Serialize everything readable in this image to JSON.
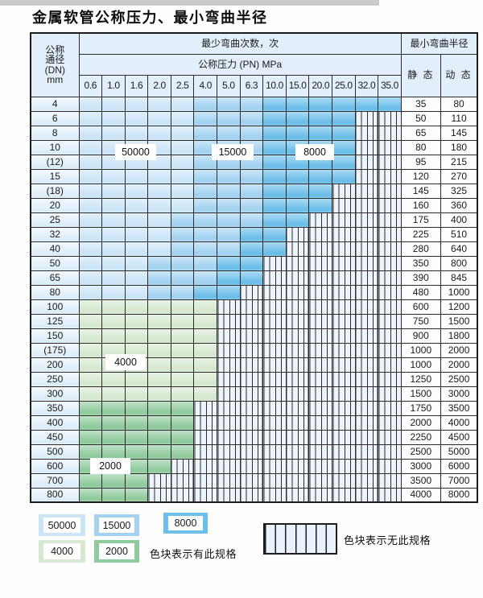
{
  "title": "金属软管公称压力、最小弯曲半径",
  "colors": {
    "blue_50000": "#cbe5f7",
    "blue_15000": "#a3d3f1",
    "blue_8000": "#6cbfe9",
    "green_4000": "#d7e8d0",
    "green_2000": "#90cb9e",
    "hatch_fill": "#edf4fb",
    "grid_line": "#2b2b2b",
    "header_bg": "#e2effa"
  },
  "table": {
    "header": {
      "dn_lines": [
        "公称",
        "通径",
        "(DN)",
        "mm"
      ],
      "bend_cycles": "最少弯曲次数，次",
      "pressure": "公称压力 (PN) MPa",
      "pressures": [
        "0.6",
        "1.0",
        "1.6",
        "2.0",
        "2.5",
        "4.0",
        "5.0",
        "6.3",
        "10.0",
        "15.0",
        "20.0",
        "25.0",
        "32.0",
        "35.0"
      ],
      "min_radius": "最小弯曲半径",
      "static": "静 态",
      "dynamic": "动 态"
    },
    "zone_codes": {
      "a": "50000",
      "b": "15000",
      "c": "8000",
      "d": "4000",
      "e": "2000",
      "h": "no-spec-hatched"
    },
    "rows": [
      {
        "dn": "4",
        "cells": "aaaaabbbcccccc",
        "static": "35",
        "dynamic": "80"
      },
      {
        "dn": "6",
        "cells": "aaaaabbbcccchh",
        "static": "50",
        "dynamic": "110"
      },
      {
        "dn": "8",
        "cells": "aaaaabbbcccchh",
        "static": "65",
        "dynamic": "145"
      },
      {
        "dn": "10",
        "cells": "aaaaabbbcccchh",
        "static": "80",
        "dynamic": "180"
      },
      {
        "dn": "(12)",
        "cells": "aaaaabbbcccchh",
        "static": "95",
        "dynamic": "215"
      },
      {
        "dn": "15",
        "cells": "aaaaabbbcccchh",
        "static": "120",
        "dynamic": "270"
      },
      {
        "dn": "(18)",
        "cells": "aaaaabbbccchhh",
        "static": "145",
        "dynamic": "325"
      },
      {
        "dn": "20",
        "cells": "aaaaabbbccchhh",
        "static": "160",
        "dynamic": "360"
      },
      {
        "dn": "25",
        "cells": "aaaabbbbcchhhh",
        "static": "175",
        "dynamic": "400"
      },
      {
        "dn": "32",
        "cells": "aaaabbbcchhhhh",
        "static": "225",
        "dynamic": "510"
      },
      {
        "dn": "40",
        "cells": "aaaabbbcchhhhh",
        "static": "280",
        "dynamic": "640"
      },
      {
        "dn": "50",
        "cells": "aaabbbcchhhhhh",
        "static": "350",
        "dynamic": "800"
      },
      {
        "dn": "65",
        "cells": "aaabbbcchhhhhh",
        "static": "390",
        "dynamic": "845"
      },
      {
        "dn": "80",
        "cells": "aaabbcchhhhhhh",
        "static": "480",
        "dynamic": "1000"
      },
      {
        "dn": "100",
        "cells": "ddddddhhhhhhhh",
        "static": "600",
        "dynamic": "1200"
      },
      {
        "dn": "125",
        "cells": "ddddddhhhhhhhh",
        "static": "750",
        "dynamic": "1500"
      },
      {
        "dn": "150",
        "cells": "ddddddhhhhhhhh",
        "static": "900",
        "dynamic": "1800"
      },
      {
        "dn": "(175)",
        "cells": "ddddddhhhhhhhh",
        "static": "1000",
        "dynamic": "2000"
      },
      {
        "dn": "200",
        "cells": "ddddddhhhhhhhh",
        "static": "1000",
        "dynamic": "2000"
      },
      {
        "dn": "250",
        "cells": "ddddddhhhhhhhh",
        "static": "1250",
        "dynamic": "2500"
      },
      {
        "dn": "300",
        "cells": "ddddddhhhhhhhh",
        "static": "1500",
        "dynamic": "3000"
      },
      {
        "dn": "350",
        "cells": "eeeeehhhhhhhhh",
        "static": "1750",
        "dynamic": "3500"
      },
      {
        "dn": "400",
        "cells": "eeeeehhhhhhhhh",
        "static": "2000",
        "dynamic": "4000"
      },
      {
        "dn": "450",
        "cells": "eeeeehhhhhhhhh",
        "static": "2250",
        "dynamic": "4500"
      },
      {
        "dn": "500",
        "cells": "eeeeehhhhhhhhh",
        "static": "2500",
        "dynamic": "5000"
      },
      {
        "dn": "600",
        "cells": "eeeehhhhhhhhhh",
        "static": "3000",
        "dynamic": "6000"
      },
      {
        "dn": "700",
        "cells": "eeehhhhhhhhhhh",
        "static": "3500",
        "dynamic": "7000"
      },
      {
        "dn": "800",
        "cells": "eeehhhhhhhhhhh",
        "static": "4000",
        "dynamic": "8000"
      }
    ]
  },
  "overlays": [
    {
      "text": "50000"
    },
    {
      "text": "15000"
    },
    {
      "text": "8000"
    },
    {
      "text": "4000"
    },
    {
      "text": "2000"
    }
  ],
  "legend": {
    "swatches": [
      {
        "value": "50000"
      },
      {
        "value": "15000"
      },
      {
        "value": "8000"
      },
      {
        "value": "4000"
      },
      {
        "value": "2000"
      }
    ],
    "has_spec": "色块表示有此规格",
    "no_spec": "色块表示无此规格"
  }
}
